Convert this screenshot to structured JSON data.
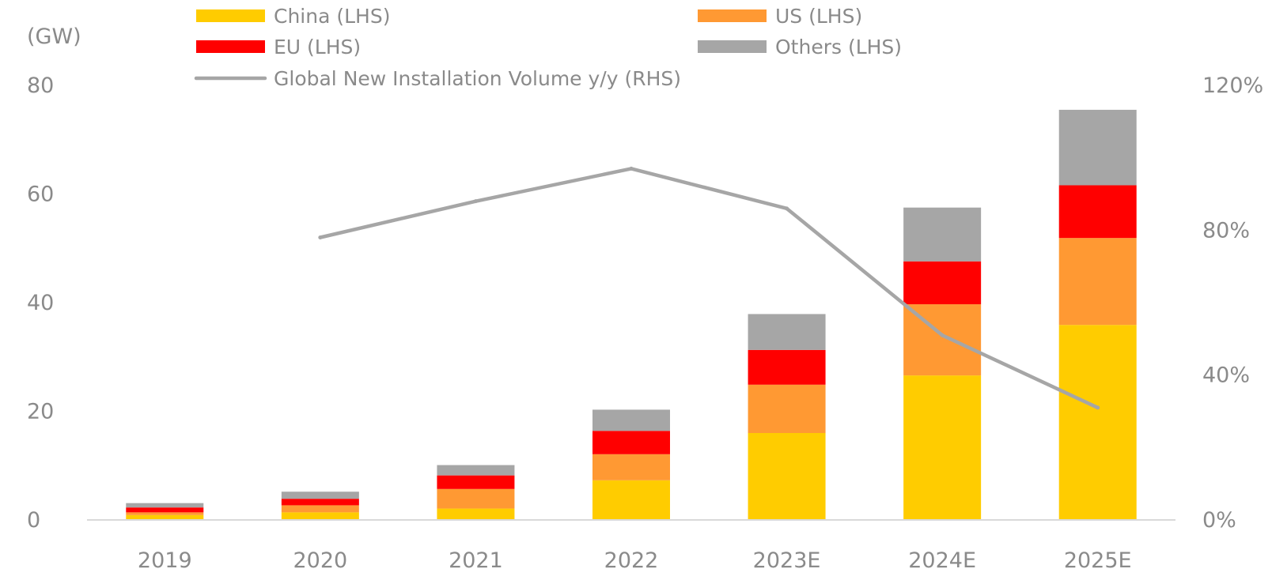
{
  "chart_data": {
    "type": "bar",
    "stacked": true,
    "unit_left": "(GW)",
    "categories": [
      "2019",
      "2020",
      "2021",
      "2022",
      "2023E",
      "2024E",
      "2025E"
    ],
    "series": [
      {
        "name": "China (LHS)",
        "color": "#FFCC00",
        "values": [
          0.9,
          1.4,
          2.1,
          7.3,
          16.0,
          26.6,
          35.9
        ]
      },
      {
        "name": "US (LHS)",
        "color": "#FF9933",
        "values": [
          0.5,
          1.3,
          3.6,
          4.8,
          8.9,
          13.1,
          16.0
        ]
      },
      {
        "name": "EU (LHS)",
        "color": "#FF0000",
        "values": [
          0.9,
          1.2,
          2.5,
          4.3,
          6.4,
          7.9,
          9.7
        ]
      },
      {
        "name": "Others (LHS)",
        "color": "#A6A6A6",
        "values": [
          0.8,
          1.3,
          1.9,
          3.9,
          6.6,
          9.9,
          13.9
        ]
      }
    ],
    "line": {
      "name": "Global New Installation Volume y/y (RHS)",
      "color": "#A6A6A6",
      "values": [
        null,
        78,
        88,
        97,
        86,
        51,
        31
      ]
    },
    "ylim_left": [
      0,
      80
    ],
    "ylim_right": [
      0,
      120
    ],
    "yticks_left": [
      "0",
      "20",
      "40",
      "60",
      "80"
    ],
    "yticks_right": [
      "0%",
      "40%",
      "80%",
      "120%"
    ],
    "grid": false,
    "legend_position": "top"
  }
}
